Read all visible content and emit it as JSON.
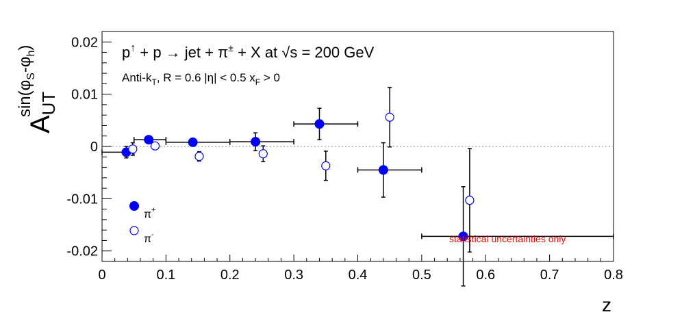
{
  "chart_data": {
    "type": "scatter",
    "title": "p↑ + p → jet + π± + X at √s = 200 GeV",
    "subtitle": "Anti-kT, R = 0.6   |η| < 0.5   xF > 0",
    "xlabel": "z",
    "ylabel": "A_UT^sin(φS-φh)",
    "xlim": [
      0,
      0.8
    ],
    "ylim": [
      -0.022,
      0.022
    ],
    "x_ticks": [
      "0",
      "0.1",
      "0.2",
      "0.3",
      "0.4",
      "0.5",
      "0.6",
      "0.7",
      "0.8"
    ],
    "y_ticks": [
      "-0.02",
      "-0.01",
      "0",
      "0.01",
      "0.02"
    ],
    "reference_line": 0,
    "legend_position": "bottom-left",
    "annotation": "statistical uncertainties only",
    "annotation_color": "#ff0000",
    "series": [
      {
        "name": "π+",
        "marker": "filled-circle",
        "color": "#0000ff",
        "points": [
          {
            "x": 0.038,
            "y": -0.0011,
            "xlo": 0.0,
            "xhi": 0.05,
            "yerr": 0.0011
          },
          {
            "x": 0.073,
            "y": 0.0013,
            "xlo": 0.05,
            "xhi": 0.1,
            "yerr": 0.0006
          },
          {
            "x": 0.142,
            "y": 0.0008,
            "xlo": 0.1,
            "xhi": 0.2,
            "yerr": 0.0007
          },
          {
            "x": 0.24,
            "y": 0.0009,
            "xlo": 0.2,
            "xhi": 0.3,
            "yerr": 0.0017
          },
          {
            "x": 0.34,
            "y": 0.0043,
            "xlo": 0.3,
            "xhi": 0.4,
            "yerr": 0.003
          },
          {
            "x": 0.44,
            "y": -0.0045,
            "xlo": 0.4,
            "xhi": 0.5,
            "yerr": 0.0052
          },
          {
            "x": 0.565,
            "y": -0.0172,
            "xlo": 0.5,
            "xhi": 0.8,
            "yerr": 0.0095
          }
        ]
      },
      {
        "name": "π-",
        "marker": "open-circle",
        "color": "#0000ff",
        "points": [
          {
            "x": 0.048,
            "y": -0.0005,
            "yerr": 0.0012
          },
          {
            "x": 0.083,
            "y": 0.0001,
            "yerr": 0.0005
          },
          {
            "x": 0.152,
            "y": -0.0019,
            "yerr": 0.0009
          },
          {
            "x": 0.252,
            "y": -0.0014,
            "yerr": 0.0015
          },
          {
            "x": 0.35,
            "y": -0.0037,
            "yerr": 0.0028
          },
          {
            "x": 0.45,
            "y": 0.0056,
            "yerr": 0.0057
          },
          {
            "x": 0.575,
            "y": -0.0103,
            "yerr": 0.0099
          }
        ]
      }
    ]
  }
}
